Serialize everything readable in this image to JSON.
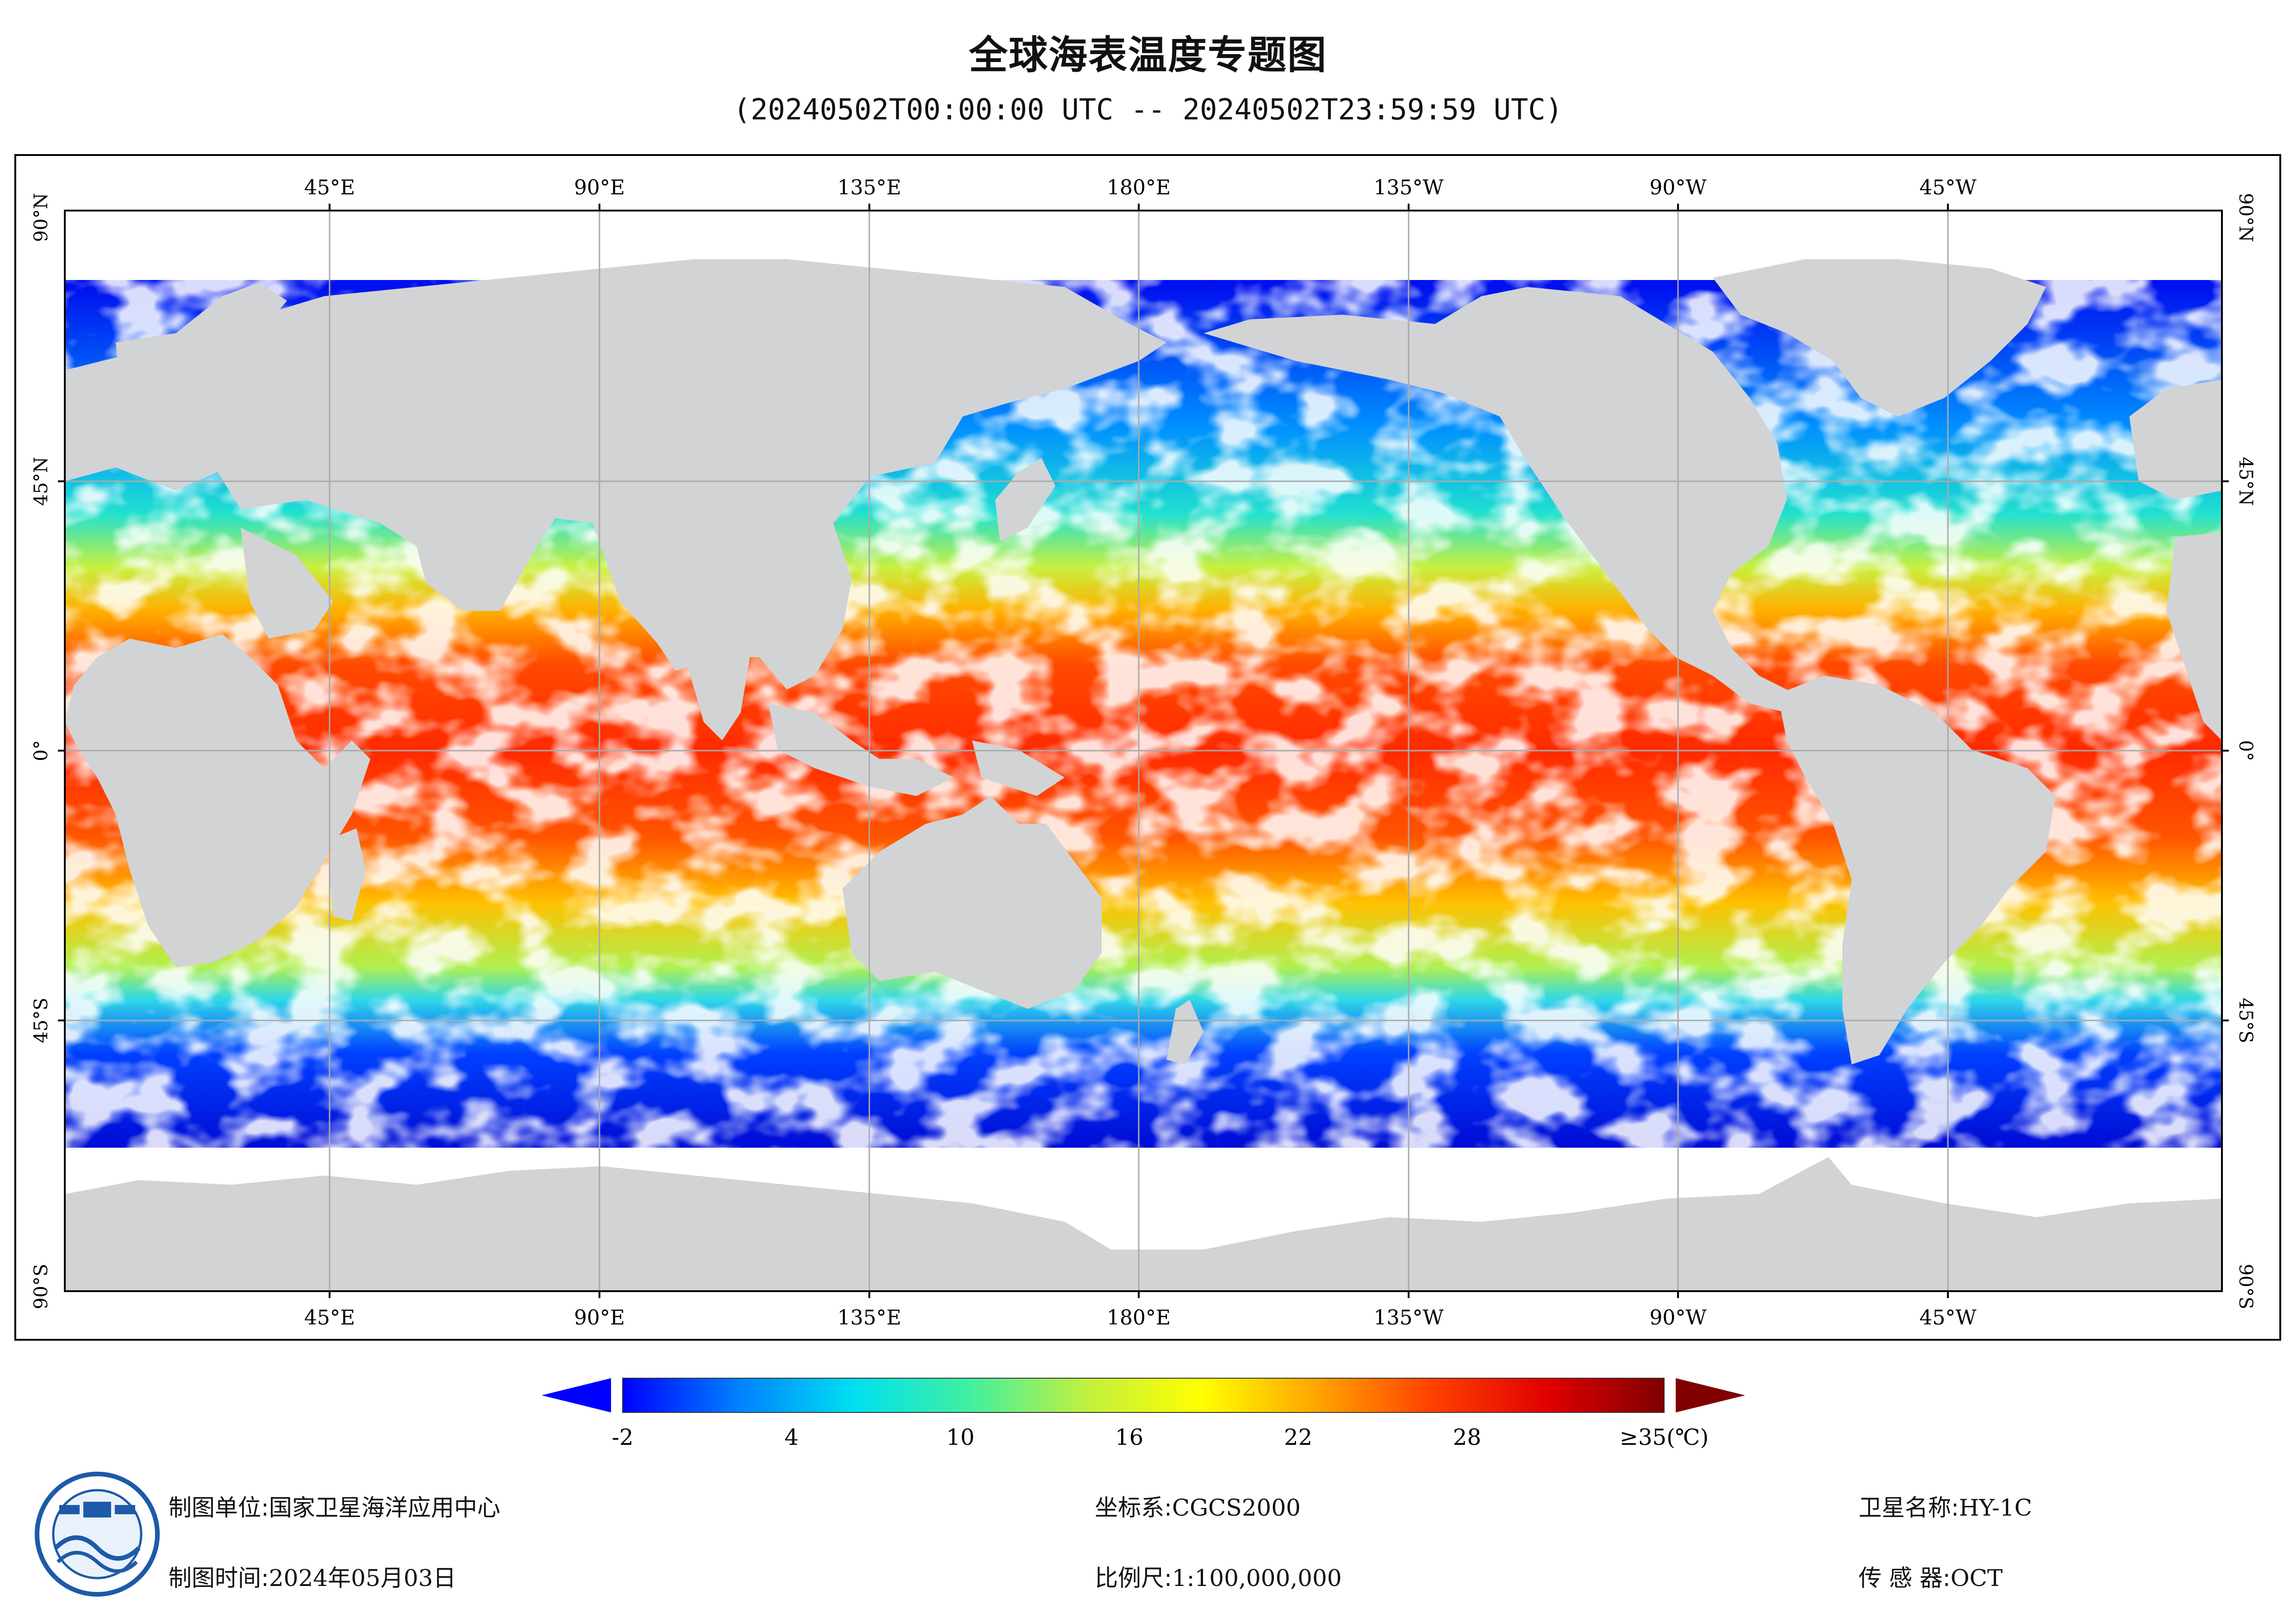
{
  "title": "全球海表温度专题图",
  "subtitle": "(20240502T00:00:00 UTC -- 20240502T23:59:59 UTC)",
  "map": {
    "top_longitude_labels": [
      "45°E",
      "90°E",
      "135°E",
      "180°E",
      "135°W",
      "90°W",
      "45°W"
    ],
    "bottom_longitude_labels": [
      "45°E",
      "90°E",
      "135°E",
      "180°E",
      "135°W",
      "90°W",
      "45°W"
    ],
    "left_latitude_labels": [
      "90°N",
      "45°N",
      "0°",
      "45°S",
      "90°S"
    ],
    "right_latitude_labels": [
      "90°N",
      "45°N",
      "0°",
      "45°S",
      "90°S"
    ],
    "colors": {
      "land": "#d2d3d5",
      "no_data": "#ffffff",
      "grid": "#aaaaaa",
      "border": "#000000"
    }
  },
  "legend": {
    "tick_labels": [
      "-2",
      "4",
      "10",
      "16",
      "22",
      "28",
      "≥35(℃)"
    ],
    "value_ticks": [
      -2,
      4,
      10,
      16,
      22,
      28,
      35
    ],
    "range": [
      -2,
      35
    ],
    "colors": [
      "#0000ff",
      "#0080ff",
      "#00e0f0",
      "#40f0a0",
      "#c0f040",
      "#ffff00",
      "#ffa500",
      "#ff4000",
      "#e00000",
      "#800000"
    ],
    "under_color": "#0000ff",
    "over_color": "#800000"
  },
  "footer": {
    "producer_label": "制图单位:",
    "producer_value": "国家卫星海洋应用中心",
    "date_label": "制图时间:",
    "date_value": "2024年05月03日",
    "crs_label": "坐标系:",
    "crs_value": "CGCS2000",
    "scale_label": "比例尺:",
    "scale_value": "1:100,000,000",
    "satellite_label": "卫星名称:",
    "satellite_value": "HY-1C",
    "sensor_label": "传 感 器:",
    "sensor_value": "OCT"
  },
  "logo": {
    "icon": "nsoas-logo-icon"
  }
}
